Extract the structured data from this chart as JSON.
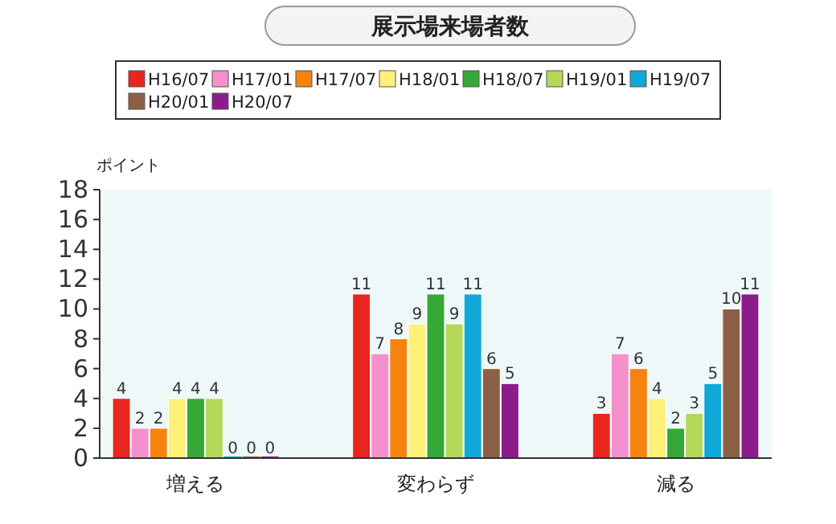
{
  "chart_data": {
    "type": "bar",
    "title": "展示場来場者数",
    "ylabel": "ポイント",
    "categories": [
      "増える",
      "変わらず",
      "減る"
    ],
    "series": [
      {
        "name": "H16/07",
        "color": "#e8251f",
        "values": [
          4,
          11,
          3
        ]
      },
      {
        "name": "H17/01",
        "color": "#f590cc",
        "values": [
          2,
          7,
          7
        ]
      },
      {
        "name": "H17/07",
        "color": "#f7830f",
        "values": [
          2,
          8,
          6
        ]
      },
      {
        "name": "H18/01",
        "color": "#fff07a",
        "values": [
          4,
          9,
          4
        ]
      },
      {
        "name": "H18/07",
        "color": "#36a836",
        "values": [
          4,
          11,
          2
        ]
      },
      {
        "name": "H19/01",
        "color": "#b4d858",
        "values": [
          4,
          9,
          3
        ]
      },
      {
        "name": "H19/07",
        "color": "#10a8d8",
        "values": [
          0,
          11,
          5
        ]
      },
      {
        "name": "H20/01",
        "color": "#8c6046",
        "values": [
          0,
          6,
          10
        ]
      },
      {
        "name": "H20/07",
        "color": "#8c1c8c",
        "values": [
          0,
          5,
          11
        ]
      }
    ],
    "ylim": [
      0,
      18
    ],
    "yticks": [
      0,
      2,
      4,
      6,
      8,
      10,
      12,
      14,
      16,
      18
    ],
    "grid": false,
    "legend": "top",
    "data_labels": true
  }
}
